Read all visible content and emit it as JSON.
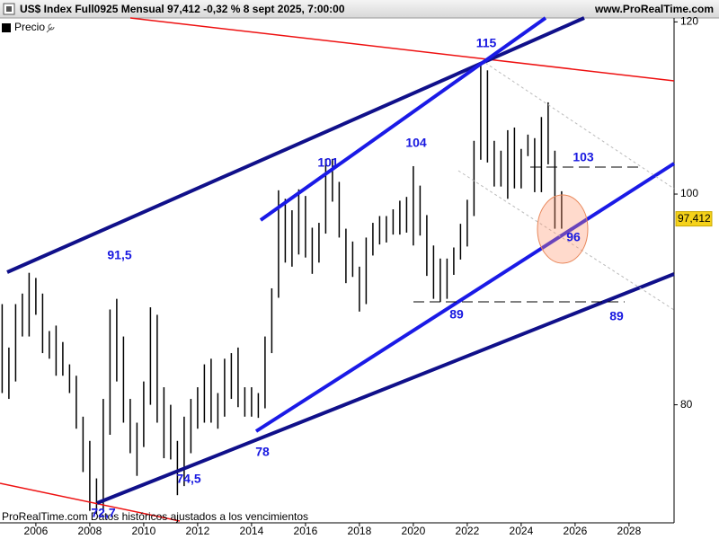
{
  "header": {
    "title": "US$ Index Full0925 Mensual 97,412 -0,32 % 8 sept 2025, 7:00:00",
    "site": "www.ProRealTime.com"
  },
  "legend": {
    "label": "Precio"
  },
  "footer": {
    "text": "ProRealTime.com  Datos históricos ajustados a los vencimientos"
  },
  "chart_data": {
    "type": "range_bar",
    "color": "#000000",
    "log_scale": true,
    "x": [
      2004.75,
      2005,
      2005.25,
      2005.5,
      2005.75,
      2006,
      2006.25,
      2006.5,
      2006.75,
      2007,
      2007.25,
      2007.5,
      2007.75,
      2008,
      2008.25,
      2008.5,
      2008.75,
      2009,
      2009.25,
      2009.5,
      2009.75,
      2010,
      2010.25,
      2010.5,
      2010.75,
      2011,
      2011.25,
      2011.5,
      2011.75,
      2012,
      2012.25,
      2012.5,
      2012.75,
      2013,
      2013.25,
      2013.5,
      2013.75,
      2014,
      2014.25,
      2014.5,
      2014.75,
      2015,
      2015.25,
      2015.5,
      2015.75,
      2016,
      2016.25,
      2016.5,
      2016.75,
      2017,
      2017.25,
      2017.5,
      2017.75,
      2018,
      2018.25,
      2018.5,
      2018.75,
      2019,
      2019.25,
      2019.5,
      2019.75,
      2020,
      2020.25,
      2020.5,
      2020.75,
      2021,
      2021.25,
      2021.5,
      2021.75,
      2022,
      2022.25,
      2022.5,
      2022.75,
      2023,
      2023.25,
      2023.5,
      2023.75,
      2024,
      2024.25,
      2024.5,
      2024.75,
      2025,
      2025.25,
      2025.5
    ],
    "high": [
      89,
      85,
      89,
      90,
      92,
      91.5,
      90,
      86.5,
      87,
      85.5,
      83.5,
      82.5,
      79,
      77,
      74,
      80.5,
      88.5,
      89.5,
      86,
      80.5,
      78.5,
      82,
      88.7,
      88,
      81.5,
      80,
      77,
      79,
      80.5,
      81.5,
      83.5,
      84,
      81,
      84,
      84.5,
      85,
      81.5,
      81.5,
      81,
      86,
      90.5,
      100.4,
      99.5,
      98.3,
      100.5,
      99.8,
      96.5,
      97,
      103.8,
      103.8,
      101.3,
      96.4,
      95.1,
      92.6,
      95.5,
      97,
      97.7,
      97.7,
      98.4,
      99.3,
      99.7,
      103,
      100.9,
      97.8,
      94.7,
      93.4,
      93.4,
      94.5,
      96.9,
      99.4,
      105.8,
      114.8,
      114,
      105.8,
      104.7,
      107,
      107.3,
      104.9,
      106.5,
      106.1,
      108.5,
      110.2,
      104.7,
      100.3
    ],
    "low": [
      81,
      80.5,
      82,
      86,
      86,
      88,
      84.5,
      84,
      82.5,
      82.5,
      81,
      78,
      74.5,
      71.5,
      71.3,
      71.5,
      77.5,
      82,
      78.5,
      76,
      74.2,
      76.5,
      80,
      78.5,
      75.6,
      75.5,
      72.7,
      73.4,
      76,
      78,
      78.5,
      78.5,
      78,
      79,
      80.5,
      79.8,
      79,
      79,
      78.9,
      79.7,
      84.5,
      89.6,
      93,
      92.6,
      93.8,
      93.5,
      91.9,
      93,
      95.9,
      99.2,
      95.5,
      91,
      91.6,
      88.3,
      89,
      93.7,
      94.8,
      95,
      95.8,
      95.8,
      96,
      94.7,
      95.7,
      91.7,
      89.5,
      89.2,
      89.5,
      91.8,
      93.3,
      94.6,
      97.7,
      103.7,
      103.4,
      100.8,
      100.8,
      99.5,
      100.6,
      100.6,
      104.1,
      100.2,
      100.2,
      103.2,
      96.4,
      96.4
    ],
    "xlim": [
      2004.67,
      2029.67
    ],
    "xticks": [
      2006,
      2008,
      2010,
      2012,
      2014,
      2016,
      2018,
      2020,
      2022,
      2024,
      2026,
      2028
    ],
    "ylim": [
      70.6,
      120.5
    ],
    "yticks": [
      80,
      100,
      120
    ],
    "last_price": {
      "value": 97.412,
      "label": "97,412"
    },
    "annotations": [
      "115",
      "101",
      "104",
      "103",
      "96",
      "89",
      "89",
      "91,5",
      "78",
      "74,5",
      "72,7"
    ]
  }
}
